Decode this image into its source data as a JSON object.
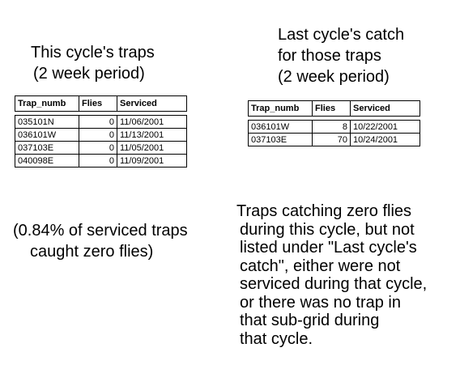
{
  "left_title": [
    "This cycle's traps",
    "(2 week period)"
  ],
  "right_title": [
    "Last cycle's catch",
    "for those traps",
    "(2 week period)"
  ],
  "left_table": {
    "headers": [
      "Trap_numb",
      "Flies",
      "Serviced"
    ],
    "rows": [
      [
        "035101N",
        "0",
        "11/06/2001"
      ],
      [
        "036101W",
        "0",
        "11/13/2001"
      ],
      [
        "037103E",
        "0",
        "11/05/2001"
      ],
      [
        "040098E",
        "0",
        "11/09/2001"
      ]
    ]
  },
  "right_table": {
    "headers": [
      "Trap_numb",
      "Flies",
      "Serviced"
    ],
    "rows": [
      [
        "036101W",
        "8",
        "10/22/2001"
      ],
      [
        "037103E",
        "70",
        "10/24/2001"
      ]
    ]
  },
  "left_note": [
    "(0.84% of serviced traps",
    "caught zero flies)"
  ],
  "right_note": [
    "Traps catching zero flies",
    "during this cycle, but not",
    "listed under \"Last cycle's",
    "catch\", either were not",
    "serviced during that cycle,",
    "or there was no trap in",
    "that sub-grid during",
    "that cycle."
  ]
}
